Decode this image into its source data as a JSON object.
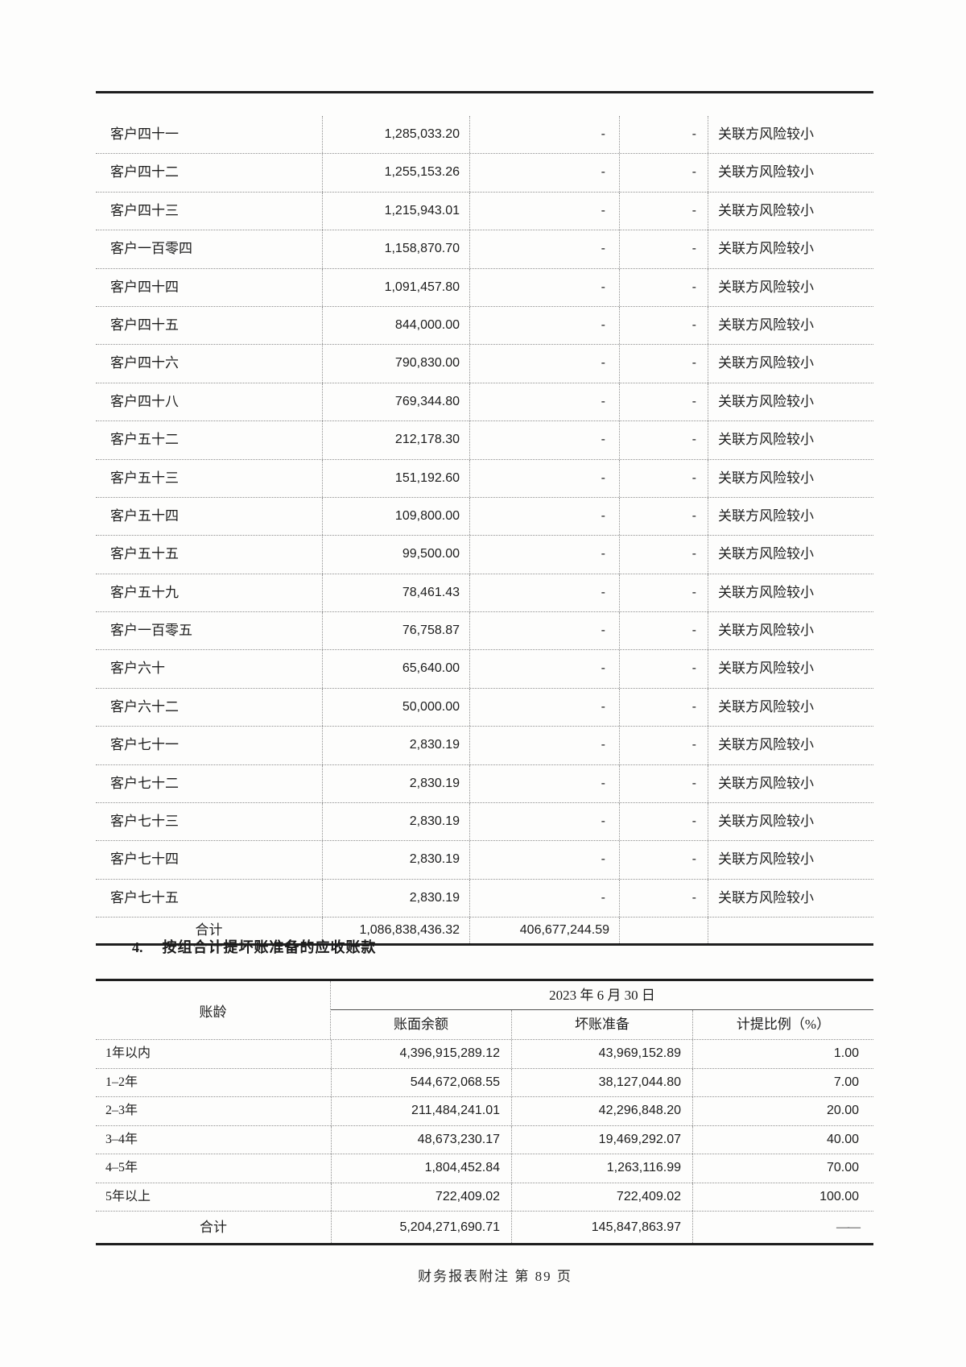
{
  "table1": {
    "rows": [
      {
        "name": "客户四十一",
        "balance": "1,285,033.20",
        "bad_debt": "-",
        "ratio": "-",
        "remark": "关联方风险较小"
      },
      {
        "name": "客户四十二",
        "balance": "1,255,153.26",
        "bad_debt": "-",
        "ratio": "-",
        "remark": "关联方风险较小"
      },
      {
        "name": "客户四十三",
        "balance": "1,215,943.01",
        "bad_debt": "-",
        "ratio": "-",
        "remark": "关联方风险较小"
      },
      {
        "name": "客户一百零四",
        "balance": "1,158,870.70",
        "bad_debt": "-",
        "ratio": "-",
        "remark": "关联方风险较小"
      },
      {
        "name": "客户四十四",
        "balance": "1,091,457.80",
        "bad_debt": "-",
        "ratio": "-",
        "remark": "关联方风险较小"
      },
      {
        "name": "客户四十五",
        "balance": "844,000.00",
        "bad_debt": "-",
        "ratio": "-",
        "remark": "关联方风险较小"
      },
      {
        "name": "客户四十六",
        "balance": "790,830.00",
        "bad_debt": "-",
        "ratio": "-",
        "remark": "关联方风险较小"
      },
      {
        "name": "客户四十八",
        "balance": "769,344.80",
        "bad_debt": "-",
        "ratio": "-",
        "remark": "关联方风险较小"
      },
      {
        "name": "客户五十二",
        "balance": "212,178.30",
        "bad_debt": "-",
        "ratio": "-",
        "remark": "关联方风险较小"
      },
      {
        "name": "客户五十三",
        "balance": "151,192.60",
        "bad_debt": "-",
        "ratio": "-",
        "remark": "关联方风险较小"
      },
      {
        "name": "客户五十四",
        "balance": "109,800.00",
        "bad_debt": "-",
        "ratio": "-",
        "remark": "关联方风险较小"
      },
      {
        "name": "客户五十五",
        "balance": "99,500.00",
        "bad_debt": "-",
        "ratio": "-",
        "remark": "关联方风险较小"
      },
      {
        "name": "客户五十九",
        "balance": "78,461.43",
        "bad_debt": "-",
        "ratio": "-",
        "remark": "关联方风险较小"
      },
      {
        "name": "客户一百零五",
        "balance": "76,758.87",
        "bad_debt": "-",
        "ratio": "-",
        "remark": "关联方风险较小"
      },
      {
        "name": "客户六十",
        "balance": "65,640.00",
        "bad_debt": "-",
        "ratio": "-",
        "remark": "关联方风险较小"
      },
      {
        "name": "客户六十二",
        "balance": "50,000.00",
        "bad_debt": "-",
        "ratio": "-",
        "remark": "关联方风险较小"
      },
      {
        "name": "客户七十一",
        "balance": "2,830.19",
        "bad_debt": "-",
        "ratio": "-",
        "remark": "关联方风险较小"
      },
      {
        "name": "客户七十二",
        "balance": "2,830.19",
        "bad_debt": "-",
        "ratio": "-",
        "remark": "关联方风险较小"
      },
      {
        "name": "客户七十三",
        "balance": "2,830.19",
        "bad_debt": "-",
        "ratio": "-",
        "remark": "关联方风险较小"
      },
      {
        "name": "客户七十四",
        "balance": "2,830.19",
        "bad_debt": "-",
        "ratio": "-",
        "remark": "关联方风险较小"
      },
      {
        "name": "客户七十五",
        "balance": "2,830.19",
        "bad_debt": "-",
        "ratio": "-",
        "remark": "关联方风险较小"
      }
    ],
    "total": {
      "label": "合计",
      "balance": "1,086,838,436.32",
      "bad_debt": "406,677,244.59"
    }
  },
  "section4": {
    "number": "4.",
    "title": "按组合计提坏账准备的应收账款"
  },
  "table2": {
    "header": {
      "aging": "账龄",
      "date": "2023 年 6 月 30 日",
      "book_balance": "账面余额",
      "bad_debt_provision": "坏账准备",
      "provision_ratio": "计提比例（%）"
    },
    "rows": [
      {
        "aging": "1年以内",
        "book_balance": "4,396,915,289.12",
        "bad_debt_provision": "43,969,152.89",
        "ratio": "1.00"
      },
      {
        "aging": "1–2年",
        "book_balance": "544,672,068.55",
        "bad_debt_provision": "38,127,044.80",
        "ratio": "7.00"
      },
      {
        "aging": "2–3年",
        "book_balance": "211,484,241.01",
        "bad_debt_provision": "42,296,848.20",
        "ratio": "20.00"
      },
      {
        "aging": "3–4年",
        "book_balance": "48,673,230.17",
        "bad_debt_provision": "19,469,292.07",
        "ratio": "40.00"
      },
      {
        "aging": "4–5年",
        "book_balance": "1,804,452.84",
        "bad_debt_provision": "1,263,116.99",
        "ratio": "70.00"
      },
      {
        "aging": "5年以上",
        "book_balance": "722,409.02",
        "bad_debt_provision": "722,409.02",
        "ratio": "100.00"
      }
    ],
    "total": {
      "label": "合计",
      "book_balance": "5,204,271,690.71",
      "bad_debt_provision": "145,847,863.97",
      "ratio": "——"
    }
  },
  "footer": {
    "text": "财务报表附注 第 89 页"
  }
}
